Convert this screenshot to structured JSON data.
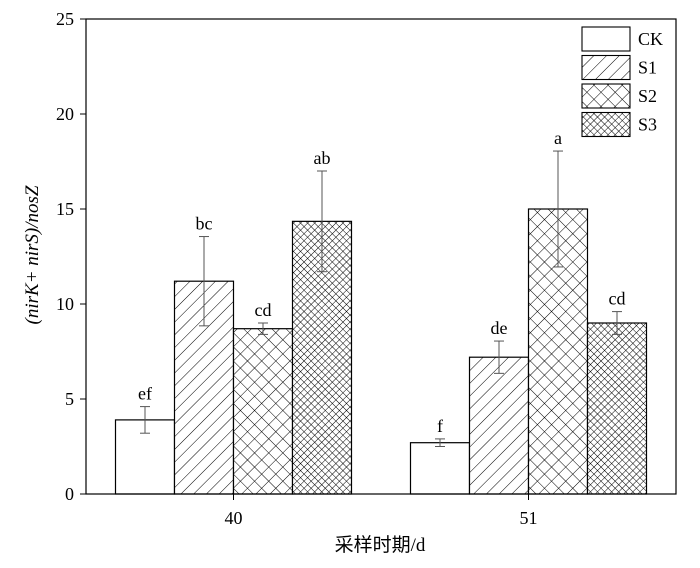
{
  "chart_data": {
    "type": "bar",
    "ylabel": "(nirK+ nirS)/nosZ",
    "xlabel": "采样时期/d",
    "categories": [
      "40",
      "51"
    ],
    "ylim": [
      0,
      25
    ],
    "yticks": [
      "0",
      "5",
      "10",
      "15",
      "20",
      "25"
    ],
    "legend_position": "top-right",
    "series": [
      {
        "name": "CK",
        "pattern": "none",
        "values": [
          3.9,
          2.7
        ],
        "errors": [
          0.7,
          0.2
        ],
        "letters": [
          "ef",
          "f"
        ]
      },
      {
        "name": "S1",
        "pattern": "diagonal",
        "values": [
          11.2,
          7.2
        ],
        "errors": [
          2.35,
          0.85
        ],
        "letters": [
          "bc",
          "de"
        ]
      },
      {
        "name": "S2",
        "pattern": "cross",
        "values": [
          8.7,
          15.0
        ],
        "errors": [
          0.3,
          3.05
        ],
        "letters": [
          "cd",
          "a"
        ]
      },
      {
        "name": "S3",
        "pattern": "dense-cross",
        "values": [
          14.35,
          9.0
        ],
        "errors": [
          2.65,
          0.6
        ],
        "letters": [
          "ab",
          "cd"
        ]
      }
    ]
  }
}
